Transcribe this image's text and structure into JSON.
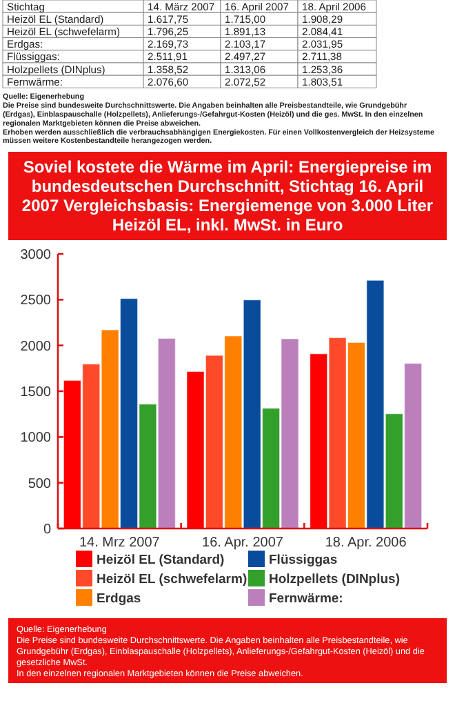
{
  "chart_data": {
    "type": "bar",
    "title": "Soviel kostete die Wärme im April: Energiepreise im bundesdeutschen Durchschnitt, Stichtag 16. April 2007 Vergleichsbasis: Energiemenge von 3.000 Liter Heizöl EL, inkl. MwSt. in Euro",
    "categories": [
      "14. Mrz 2007",
      "16. Apr. 2007",
      "18. Apr. 2006"
    ],
    "series": [
      {
        "name": "Heizöl EL (Standard)",
        "color": "#ff0000",
        "values": [
          1617.75,
          1715.0,
          1908.29
        ],
        "value_labels": [
          "1.617,75",
          "1.715,00",
          "1.908,29"
        ]
      },
      {
        "name": "Heizöl EL (schwefelarm)",
        "color": "#ff4a2a",
        "values": [
          1796.25,
          1891.13,
          2084.41
        ],
        "value_labels": [
          "1.796,25",
          "1.891,13",
          "2.084,41"
        ]
      },
      {
        "name": "Erdgas",
        "color": "#ff8000",
        "values": [
          2169.73,
          2103.17,
          2031.95
        ],
        "value_labels": [
          "2.169,73",
          "2.103,17",
          "2.031,95"
        ]
      },
      {
        "name": "Flüssiggas",
        "color": "#0a4c9c",
        "values": [
          2511.91,
          2497.27,
          2711.38
        ],
        "value_labels": [
          "2.511,91",
          "2.497,27",
          "2.711,38"
        ]
      },
      {
        "name": "Holzpellets (DINplus)",
        "color": "#33a02c",
        "values": [
          1358.52,
          1313.06,
          1253.36
        ],
        "value_labels": [
          "1.358,52",
          "1.313,06",
          "1.253,36"
        ]
      },
      {
        "name": "Fernwärme:",
        "color": "#bb80bb",
        "values": [
          2076.6,
          2072.52,
          1803.51
        ],
        "value_labels": [
          "2.076,60",
          "2.072,52",
          "1.803,51"
        ]
      }
    ],
    "ylim": [
      0,
      3000
    ],
    "yticks": [
      0,
      500,
      1000,
      1500,
      2000,
      2500,
      3000
    ],
    "grid": false,
    "legend": "bottom",
    "annotations": [
      "Stichtag",
      "14. März 2007",
      "16. April 2007",
      "18. April 2006",
      "Heizöl EL (Standard)",
      "Heizöl EL (schwefelarm)",
      "Erdgas:",
      "Flüssiggas:",
      "Holzpellets (DINplus)",
      "Fernwärme:",
      "Quelle: Eigenerhebung",
      "Die Preise sind bundesweite Durchschnittswerte. Die Angaben beinhalten alle Preisbestandteile, wie Grundgebühr (Erdgas), Einblaspauschalle (Holzpellets), Anlieferungs-/Gefahrgut-Kosten (Heizöl) und die ges. MwSt. In den einzelnen regionalen Marktgebieten können die Preise abweichen.",
      "Erhoben werden ausschließlich die verbrauchsabhängigen Energiekosten. Für einen Vollkostenvergleich der Heizsysteme müssen weitere Kostenbestandteile herangezogen werden.",
      "Quelle: Eigenerhebung",
      "Die Preise sind bundesweite Durchschnittswerte. Die Angaben beinhalten alle Preisbestandteile, wie Grundgebühr (Erdgas), Einblaspauschalle (Holzpellets), Anlieferungs-/Gefahrgut-Kosten (Heizöl) und die gesetzliche MwSt.",
      "In den einzelnen regionalen Marktgebieten können die Preise abweichen."
    ]
  }
}
